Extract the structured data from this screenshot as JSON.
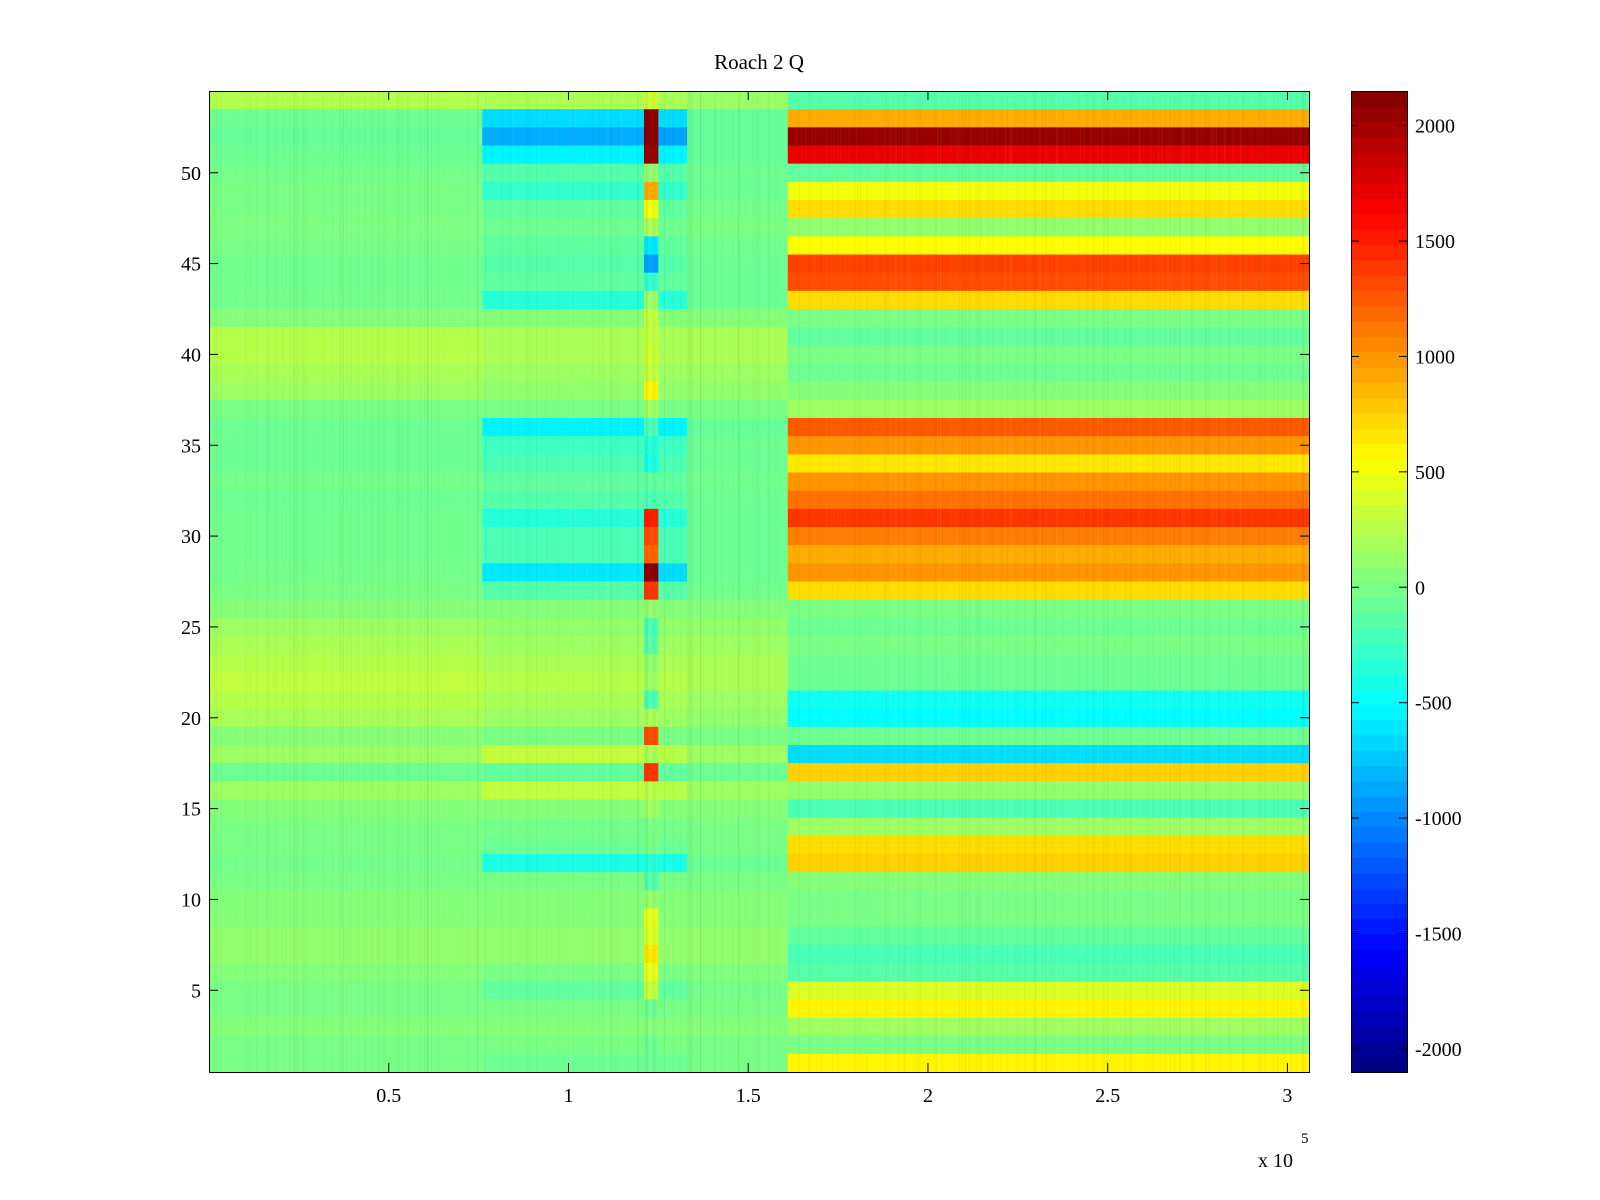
{
  "chart_data": {
    "type": "heatmap",
    "title": "Roach 2 Q",
    "xlabel": "",
    "ylabel": "",
    "x_range": [
      0,
      306000
    ],
    "y_range": [
      0.5,
      54.5
    ],
    "x_ticks": [
      50000,
      100000,
      150000,
      200000,
      250000,
      300000
    ],
    "x_tick_labels": [
      "0.5",
      "1",
      "1.5",
      "2",
      "2.5",
      "3"
    ],
    "x_multiplier_label": "x 10",
    "x_multiplier_exponent": "5",
    "y_ticks": [
      5,
      10,
      15,
      20,
      25,
      30,
      35,
      40,
      45,
      50
    ],
    "y_tick_labels": [
      "5",
      "10",
      "15",
      "20",
      "25",
      "30",
      "35",
      "40",
      "45",
      "50"
    ],
    "colormap": "jet",
    "color_range": [
      -2100,
      2150
    ],
    "colorbar_ticks": [
      2000,
      1500,
      1000,
      500,
      0,
      -500,
      -1000,
      -1500,
      -2000
    ],
    "colorbar_tick_labels": [
      "2000",
      "1500",
      "1000",
      "500",
      "0",
      "-500",
      "-1000",
      "-1500",
      "-2000"
    ],
    "rows": 54,
    "segment_x_edges": [
      0,
      76000,
      121000,
      125000,
      133000,
      161000,
      306000
    ],
    "segments": [
      {
        "row": 54,
        "values": [
          230,
          210,
          350,
          200,
          130,
          -150
        ]
      },
      {
        "row": 53,
        "values": [
          -50,
          -650,
          2100,
          -650,
          -80,
          900
        ]
      },
      {
        "row": 52,
        "values": [
          -80,
          -850,
          2100,
          -900,
          -80,
          2050
        ]
      },
      {
        "row": 51,
        "values": [
          -50,
          -550,
          2050,
          -550,
          -80,
          1700
        ]
      },
      {
        "row": 50,
        "values": [
          -20,
          -150,
          100,
          -150,
          -50,
          -100
        ]
      },
      {
        "row": 49,
        "values": [
          0,
          -300,
          900,
          -300,
          -50,
          500
        ]
      },
      {
        "row": 48,
        "values": [
          0,
          -100,
          500,
          -100,
          -20,
          700
        ]
      },
      {
        "row": 47,
        "values": [
          20,
          -50,
          200,
          -50,
          0,
          100
        ]
      },
      {
        "row": 46,
        "values": [
          0,
          -100,
          -600,
          -100,
          -30,
          550
        ]
      },
      {
        "row": 45,
        "values": [
          -30,
          -150,
          -900,
          -150,
          -50,
          1350
        ]
      },
      {
        "row": 44,
        "values": [
          -30,
          -100,
          -300,
          -100,
          -50,
          1300
        ]
      },
      {
        "row": 43,
        "values": [
          -20,
          -350,
          150,
          -350,
          -50,
          700
        ]
      },
      {
        "row": 42,
        "values": [
          50,
          50,
          300,
          50,
          50,
          0
        ]
      },
      {
        "row": 41,
        "values": [
          250,
          200,
          300,
          200,
          200,
          -100
        ]
      },
      {
        "row": 40,
        "values": [
          250,
          200,
          350,
          200,
          200,
          0
        ]
      },
      {
        "row": 39,
        "values": [
          200,
          150,
          300,
          150,
          150,
          -50
        ]
      },
      {
        "row": 38,
        "values": [
          150,
          100,
          600,
          100,
          100,
          50
        ]
      },
      {
        "row": 37,
        "values": [
          0,
          0,
          150,
          0,
          0,
          150
        ]
      },
      {
        "row": 36,
        "values": [
          -50,
          -550,
          -200,
          -550,
          -80,
          1250
        ]
      },
      {
        "row": 35,
        "values": [
          -50,
          -250,
          -350,
          -250,
          -50,
          1000
        ]
      },
      {
        "row": 34,
        "values": [
          -50,
          -200,
          -400,
          -200,
          -50,
          650
        ]
      },
      {
        "row": 33,
        "values": [
          -20,
          -100,
          -100,
          -100,
          -30,
          1000
        ]
      },
      {
        "row": 32,
        "values": [
          -50,
          -150,
          -200,
          -150,
          -50,
          1150
        ]
      },
      {
        "row": 31,
        "values": [
          -30,
          -350,
          1500,
          -350,
          -50,
          1400
        ]
      },
      {
        "row": 30,
        "values": [
          -30,
          -200,
          1300,
          -200,
          -50,
          1100
        ]
      },
      {
        "row": 29,
        "values": [
          -30,
          -200,
          1200,
          -200,
          -50,
          900
        ]
      },
      {
        "row": 28,
        "values": [
          -20,
          -600,
          2100,
          -650,
          -50,
          1000
        ]
      },
      {
        "row": 27,
        "values": [
          0,
          -150,
          1400,
          -150,
          -30,
          700
        ]
      },
      {
        "row": 26,
        "values": [
          50,
          50,
          100,
          50,
          50,
          0
        ]
      },
      {
        "row": 25,
        "values": [
          150,
          100,
          -200,
          100,
          100,
          -50
        ]
      },
      {
        "row": 24,
        "values": [
          200,
          150,
          -150,
          150,
          150,
          0
        ]
      },
      {
        "row": 23,
        "values": [
          250,
          200,
          100,
          200,
          200,
          -50
        ]
      },
      {
        "row": 22,
        "values": [
          300,
          250,
          150,
          250,
          200,
          -50
        ]
      },
      {
        "row": 21,
        "values": [
          250,
          200,
          -200,
          200,
          150,
          -450
        ]
      },
      {
        "row": 20,
        "values": [
          200,
          150,
          200,
          150,
          100,
          -500
        ]
      },
      {
        "row": 19,
        "values": [
          50,
          0,
          1300,
          0,
          0,
          -50
        ]
      },
      {
        "row": 18,
        "values": [
          150,
          300,
          200,
          250,
          150,
          -650
        ]
      },
      {
        "row": 17,
        "values": [
          -50,
          -100,
          1400,
          -100,
          -50,
          750
        ]
      },
      {
        "row": 16,
        "values": [
          150,
          300,
          250,
          250,
          150,
          100
        ]
      },
      {
        "row": 15,
        "values": [
          50,
          50,
          150,
          50,
          50,
          -200
        ]
      },
      {
        "row": 14,
        "values": [
          0,
          -20,
          0,
          -20,
          0,
          150
        ]
      },
      {
        "row": 13,
        "values": [
          0,
          -50,
          0,
          -50,
          0,
          700
        ]
      },
      {
        "row": 12,
        "values": [
          -20,
          -400,
          -350,
          -400,
          -50,
          750
        ]
      },
      {
        "row": 11,
        "values": [
          0,
          0,
          -150,
          0,
          0,
          50
        ]
      },
      {
        "row": 10,
        "values": [
          50,
          50,
          100,
          50,
          50,
          0
        ]
      },
      {
        "row": 9,
        "values": [
          50,
          50,
          450,
          50,
          50,
          0
        ]
      },
      {
        "row": 8,
        "values": [
          100,
          100,
          400,
          100,
          100,
          -100
        ]
      },
      {
        "row": 7,
        "values": [
          100,
          100,
          650,
          100,
          100,
          -200
        ]
      },
      {
        "row": 6,
        "values": [
          50,
          0,
          450,
          0,
          30,
          -150
        ]
      },
      {
        "row": 5,
        "values": [
          0,
          -100,
          300,
          -100,
          -20,
          400
        ]
      },
      {
        "row": 4,
        "values": [
          0,
          0,
          -50,
          0,
          0,
          600
        ]
      },
      {
        "row": 3,
        "values": [
          50,
          50,
          50,
          50,
          50,
          150
        ]
      },
      {
        "row": 2,
        "values": [
          0,
          0,
          -50,
          0,
          0,
          0
        ]
      },
      {
        "row": 1,
        "values": [
          0,
          -50,
          -50,
          -50,
          0,
          600
        ]
      }
    ]
  }
}
